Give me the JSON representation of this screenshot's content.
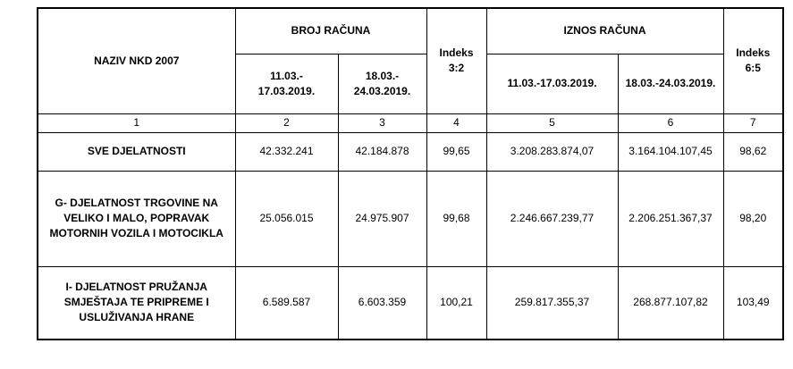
{
  "header": {
    "name_col": "NAZIV NKD 2007",
    "broj": "BROJ RAČUNA",
    "broj_p1": "11.03.-\n17.03.2019.",
    "broj_p2": "18.03.-\n24.03.2019.",
    "idx1": "Indeks\n3:2",
    "iznos": "IZNOS RAČUNA",
    "iznos_p1": "11.03.-17.03.2019.",
    "iznos_p2": "18.03.-24.03.2019.",
    "idx2": "Indeks\n6:5"
  },
  "col_numbers": [
    "1",
    "2",
    "3",
    "4",
    "5",
    "6",
    "7"
  ],
  "rows": [
    {
      "name": "SVE DJELATNOSTI",
      "c2": "42.332.241",
      "c3": "42.184.878",
      "c4": "99,65",
      "c5": "3.208.283.874,07",
      "c6": "3.164.104.107,45",
      "c7": "98,62"
    },
    {
      "name": "G- DJELATNOST TRGOVINE NA VELIKO I MALO, POPRAVAK MOTORNIH VOZILA I MOTOCIKLA",
      "c2": "25.056.015",
      "c3": "24.975.907",
      "c4": "99,68",
      "c5": "2.246.667.239,77",
      "c6": "2.206.251.367,37",
      "c7": "98,20"
    },
    {
      "name": "I- DJELATNOST PRUŽANJA SMJEŠTAJA TE PRIPREME I USLUŽIVANJA HRANE",
      "c2": "6.589.587",
      "c3": "6.603.359",
      "c4": "100,21",
      "c5": "259.817.355,37",
      "c6": "268.877.107,82",
      "c7": "103,49"
    }
  ]
}
